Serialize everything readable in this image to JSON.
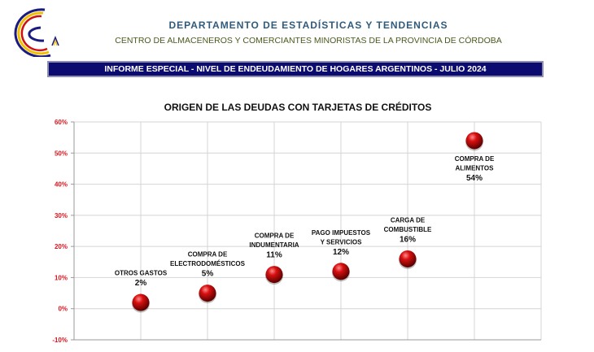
{
  "header": {
    "department": "DEPARTAMENTO DE ESTADÍSTICAS Y TENDENCIAS",
    "organization": "CENTRO DE ALMACENEROS Y COMERCIANTES MINORISTAS DE LA PROVINCIA DE CÓRDOBA",
    "banner": "INFORME ESPECIAL - NIVEL DE ENDEUDAMIENTO DE HOGARES ARGENTINOS - JULIO 2024"
  },
  "colors": {
    "accent_red": "#e0141e",
    "point": "#c00000",
    "banner": "#0c0c70"
  },
  "chart_data": {
    "type": "scatter",
    "title": "ORIGEN DE LAS DEUDAS CON TARJETAS DE CRÉDITOS",
    "xlabel": "",
    "ylabel": "",
    "xlim": [
      0,
      7
    ],
    "ylim": [
      -10,
      60
    ],
    "yticks": [
      "-10%",
      "0%",
      "10%",
      "20%",
      "30%",
      "40%",
      "50%",
      "60%"
    ],
    "grid": true,
    "points": [
      {
        "x": 1,
        "y": 2,
        "label": [
          "OTROS GASTOS"
        ],
        "value_label": "2%"
      },
      {
        "x": 2,
        "y": 5,
        "label": [
          "COMPRA DE",
          "ELECTRODOMÉSTICOS"
        ],
        "value_label": "5%"
      },
      {
        "x": 3,
        "y": 11,
        "label": [
          "COMPRA DE",
          "INDUMENTARIA"
        ],
        "value_label": "11%"
      },
      {
        "x": 4,
        "y": 12,
        "label": [
          "PAGO IMPUESTOS",
          "Y SERVICIOS"
        ],
        "value_label": "12%"
      },
      {
        "x": 5,
        "y": 16,
        "label": [
          "CARGA DE",
          "COMBUSTIBLE"
        ],
        "value_label": "16%"
      },
      {
        "x": 6,
        "y": 54,
        "label": [
          "COMPRA DE",
          "ALIMENTOS"
        ],
        "value_label": "54%"
      }
    ]
  }
}
